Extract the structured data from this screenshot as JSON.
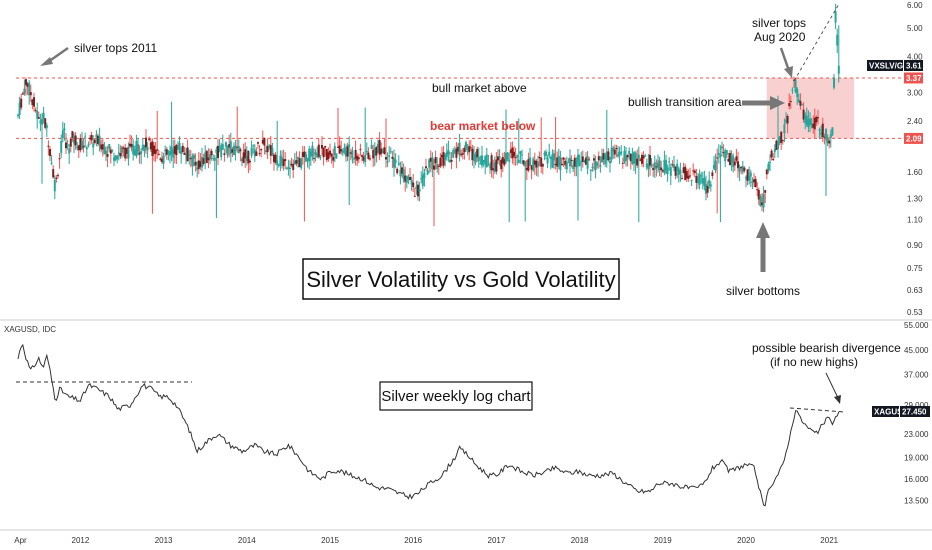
{
  "chart_data": [
    {
      "type": "candlestick",
      "title": "Silver Volatility vs Gold Volatility",
      "symbol_tag": "VXSLV/GVZ",
      "last_value": "3.61",
      "level_tags": [
        "3.37",
        "2.09"
      ],
      "levels": {
        "upper": 3.37,
        "lower": 2.09
      },
      "scale": "log",
      "y_ticks": [
        "6.00",
        "5.00",
        "4.00",
        "3.61",
        "3.37",
        "3.00",
        "2.40",
        "2.09",
        "1.60",
        "1.30",
        "1.10",
        "0.90",
        "0.75",
        "0.63",
        "0.53"
      ],
      "ylim": [
        0.53,
        6.0
      ],
      "xlim": [
        2011.25,
        2021.25
      ],
      "x_ticks": [
        "Apr",
        "2012",
        "2013",
        "2014",
        "2015",
        "2016",
        "2017",
        "2018",
        "2019",
        "2020",
        "2021"
      ],
      "annotations": {
        "silver_tops_2011": "silver tops 2011",
        "bull_market_above": "bull market above",
        "bear_market_below": "bear market below",
        "bullish_transition": "bullish transition area",
        "silver_tops_aug_line1": "silver tops",
        "silver_tops_aug_line2": "Aug 2020",
        "silver_bottoms": "silver bottoms"
      },
      "highlight_zone": {
        "x_start": 2020.25,
        "x_end": 2021.3,
        "y_low": 2.09,
        "y_high": 3.37
      },
      "series": [
        {
          "points": [
            [
              2011.25,
              2.5
            ],
            [
              2011.3,
              2.9
            ],
            [
              2011.35,
              3.3
            ],
            [
              2011.4,
              3.0
            ],
            [
              2011.45,
              2.7
            ],
            [
              2011.5,
              2.4
            ],
            [
              2011.55,
              2.5
            ],
            [
              2011.6,
              2.2
            ],
            [
              2011.65,
              1.8
            ],
            [
              2011.7,
              1.4
            ],
            [
              2011.75,
              1.8
            ],
            [
              2011.8,
              2.2
            ],
            [
              2011.85,
              1.9
            ],
            [
              2011.9,
              2.1
            ],
            [
              2012.0,
              2.0
            ],
            [
              2012.2,
              2.05
            ],
            [
              2012.4,
              1.85
            ],
            [
              2012.6,
              1.9
            ],
            [
              2012.8,
              2.0
            ],
            [
              2013.0,
              1.8
            ],
            [
              2013.2,
              1.95
            ],
            [
              2013.4,
              1.7
            ],
            [
              2013.6,
              1.85
            ],
            [
              2013.8,
              1.95
            ],
            [
              2014.0,
              1.8
            ],
            [
              2014.2,
              2.0
            ],
            [
              2014.4,
              1.75
            ],
            [
              2014.6,
              1.7
            ],
            [
              2014.8,
              1.9
            ],
            [
              2015.0,
              1.85
            ],
            [
              2015.2,
              1.9
            ],
            [
              2015.4,
              1.8
            ],
            [
              2015.6,
              1.95
            ],
            [
              2015.8,
              1.7
            ],
            [
              2015.95,
              1.5
            ],
            [
              2016.05,
              1.35
            ],
            [
              2016.2,
              1.7
            ],
            [
              2016.4,
              1.8
            ],
            [
              2016.6,
              1.95
            ],
            [
              2016.8,
              1.8
            ],
            [
              2017.0,
              1.7
            ],
            [
              2017.2,
              1.85
            ],
            [
              2017.4,
              1.7
            ],
            [
              2017.6,
              1.8
            ],
            [
              2017.8,
              1.7
            ],
            [
              2018.0,
              1.75
            ],
            [
              2018.2,
              1.7
            ],
            [
              2018.4,
              1.85
            ],
            [
              2018.6,
              1.8
            ],
            [
              2018.8,
              1.75
            ],
            [
              2019.0,
              1.7
            ],
            [
              2019.2,
              1.6
            ],
            [
              2019.4,
              1.55
            ],
            [
              2019.55,
              1.4
            ],
            [
              2019.7,
              1.9
            ],
            [
              2019.8,
              1.8
            ],
            [
              2019.9,
              1.7
            ],
            [
              2020.0,
              1.6
            ],
            [
              2020.1,
              1.5
            ],
            [
              2020.2,
              1.2
            ],
            [
              2020.27,
              1.7
            ],
            [
              2020.35,
              1.9
            ],
            [
              2020.42,
              2.1
            ],
            [
              2020.5,
              2.4
            ],
            [
              2020.58,
              3.3
            ],
            [
              2020.63,
              2.9
            ],
            [
              2020.7,
              2.5
            ],
            [
              2020.78,
              2.3
            ],
            [
              2020.86,
              2.4
            ],
            [
              2020.93,
              2.2
            ],
            [
              2021.0,
              2.1
            ],
            [
              2021.05,
              2.3
            ],
            [
              2021.08,
              5.8
            ],
            [
              2021.11,
              3.61
            ]
          ]
        }
      ]
    },
    {
      "type": "line",
      "title": "Silver weekly log chart",
      "pane_label": "XAGUSD, IDC",
      "symbol_tag": "XAGUSD",
      "last_value": "27.450",
      "scale": "log",
      "y_ticks": [
        "55.000",
        "45.000",
        "37.000",
        "29.000",
        "27.450",
        "23.000",
        "19.000",
        "16.000",
        "13.500"
      ],
      "ylim": [
        12.5,
        55.0
      ],
      "xlim": [
        2011.25,
        2021.25
      ],
      "x_ticks": [
        "Apr",
        "2012",
        "2013",
        "2014",
        "2015",
        "2016",
        "2017",
        "2018",
        "2019",
        "2020",
        "2021"
      ],
      "annotations": {
        "divergence_line1": "possible bearish divergence",
        "divergence_line2": "(if no new highs)"
      },
      "series": [
        {
          "points": [
            [
              2011.25,
              42
            ],
            [
              2011.3,
              48
            ],
            [
              2011.35,
              42
            ],
            [
              2011.4,
              38
            ],
            [
              2011.45,
              40
            ],
            [
              2011.5,
              42
            ],
            [
              2011.55,
              39
            ],
            [
              2011.6,
              43
            ],
            [
              2011.65,
              36
            ],
            [
              2011.7,
              30
            ],
            [
              2011.75,
              33
            ],
            [
              2011.85,
              31
            ],
            [
              2012.0,
              30
            ],
            [
              2012.1,
              34
            ],
            [
              2012.2,
              33
            ],
            [
              2012.35,
              31
            ],
            [
              2012.45,
              28
            ],
            [
              2012.6,
              29
            ],
            [
              2012.75,
              34
            ],
            [
              2012.85,
              33
            ],
            [
              2012.95,
              31
            ],
            [
              2013.05,
              31
            ],
            [
              2013.15,
              29
            ],
            [
              2013.3,
              24
            ],
            [
              2013.4,
              20
            ],
            [
              2013.55,
              22
            ],
            [
              2013.65,
              23
            ],
            [
              2013.8,
              21
            ],
            [
              2013.95,
              20
            ],
            [
              2014.1,
              21
            ],
            [
              2014.2,
              20
            ],
            [
              2014.35,
              19.5
            ],
            [
              2014.5,
              21
            ],
            [
              2014.6,
              19.5
            ],
            [
              2014.75,
              17
            ],
            [
              2014.9,
              16
            ],
            [
              2015.0,
              17
            ],
            [
              2015.1,
              17.2
            ],
            [
              2015.25,
              16.5
            ],
            [
              2015.4,
              16
            ],
            [
              2015.55,
              15
            ],
            [
              2015.7,
              14.8
            ],
            [
              2015.85,
              14.2
            ],
            [
              2015.95,
              13.9
            ],
            [
              2016.05,
              14.2
            ],
            [
              2016.2,
              15.5
            ],
            [
              2016.35,
              16.5
            ],
            [
              2016.5,
              19
            ],
            [
              2016.55,
              20.5
            ],
            [
              2016.65,
              19.5
            ],
            [
              2016.75,
              18
            ],
            [
              2016.9,
              16.5
            ],
            [
              2017.0,
              16.5
            ],
            [
              2017.15,
              18
            ],
            [
              2017.3,
              17
            ],
            [
              2017.45,
              16.5
            ],
            [
              2017.6,
              17
            ],
            [
              2017.7,
              17.5
            ],
            [
              2017.85,
              16.8
            ],
            [
              2018.0,
              17
            ],
            [
              2018.1,
              16.5
            ],
            [
              2018.25,
              16.5
            ],
            [
              2018.4,
              16.8
            ],
            [
              2018.55,
              15.5
            ],
            [
              2018.7,
              14.5
            ],
            [
              2018.85,
              14.5
            ],
            [
              2018.95,
              15.5
            ],
            [
              2019.1,
              15.5
            ],
            [
              2019.25,
              15
            ],
            [
              2019.4,
              14.8
            ],
            [
              2019.5,
              15.5
            ],
            [
              2019.6,
              17.5
            ],
            [
              2019.7,
              18.5
            ],
            [
              2019.8,
              17
            ],
            [
              2019.9,
              17.5
            ],
            [
              2020.0,
              18
            ],
            [
              2020.1,
              17.5
            ],
            [
              2020.18,
              14
            ],
            [
              2020.22,
              12.5
            ],
            [
              2020.28,
              15
            ],
            [
              2020.35,
              16
            ],
            [
              2020.45,
              18
            ],
            [
              2020.55,
              24
            ],
            [
              2020.6,
              28.5
            ],
            [
              2020.65,
              26
            ],
            [
              2020.75,
              24
            ],
            [
              2020.85,
              23
            ],
            [
              2020.95,
              25.5
            ],
            [
              2021.0,
              26
            ],
            [
              2021.05,
              25
            ],
            [
              2021.11,
              27.45
            ]
          ]
        }
      ]
    }
  ],
  "colors": {
    "up": "#26a69a",
    "down": "#ef5350",
    "candle_body": "#7a1f1f",
    "level_line": "#ef5350",
    "zone_fill": "#f8c8c8",
    "price_line": "#333333",
    "tag_dark": "#131722",
    "tag_red": "#ef5350"
  }
}
